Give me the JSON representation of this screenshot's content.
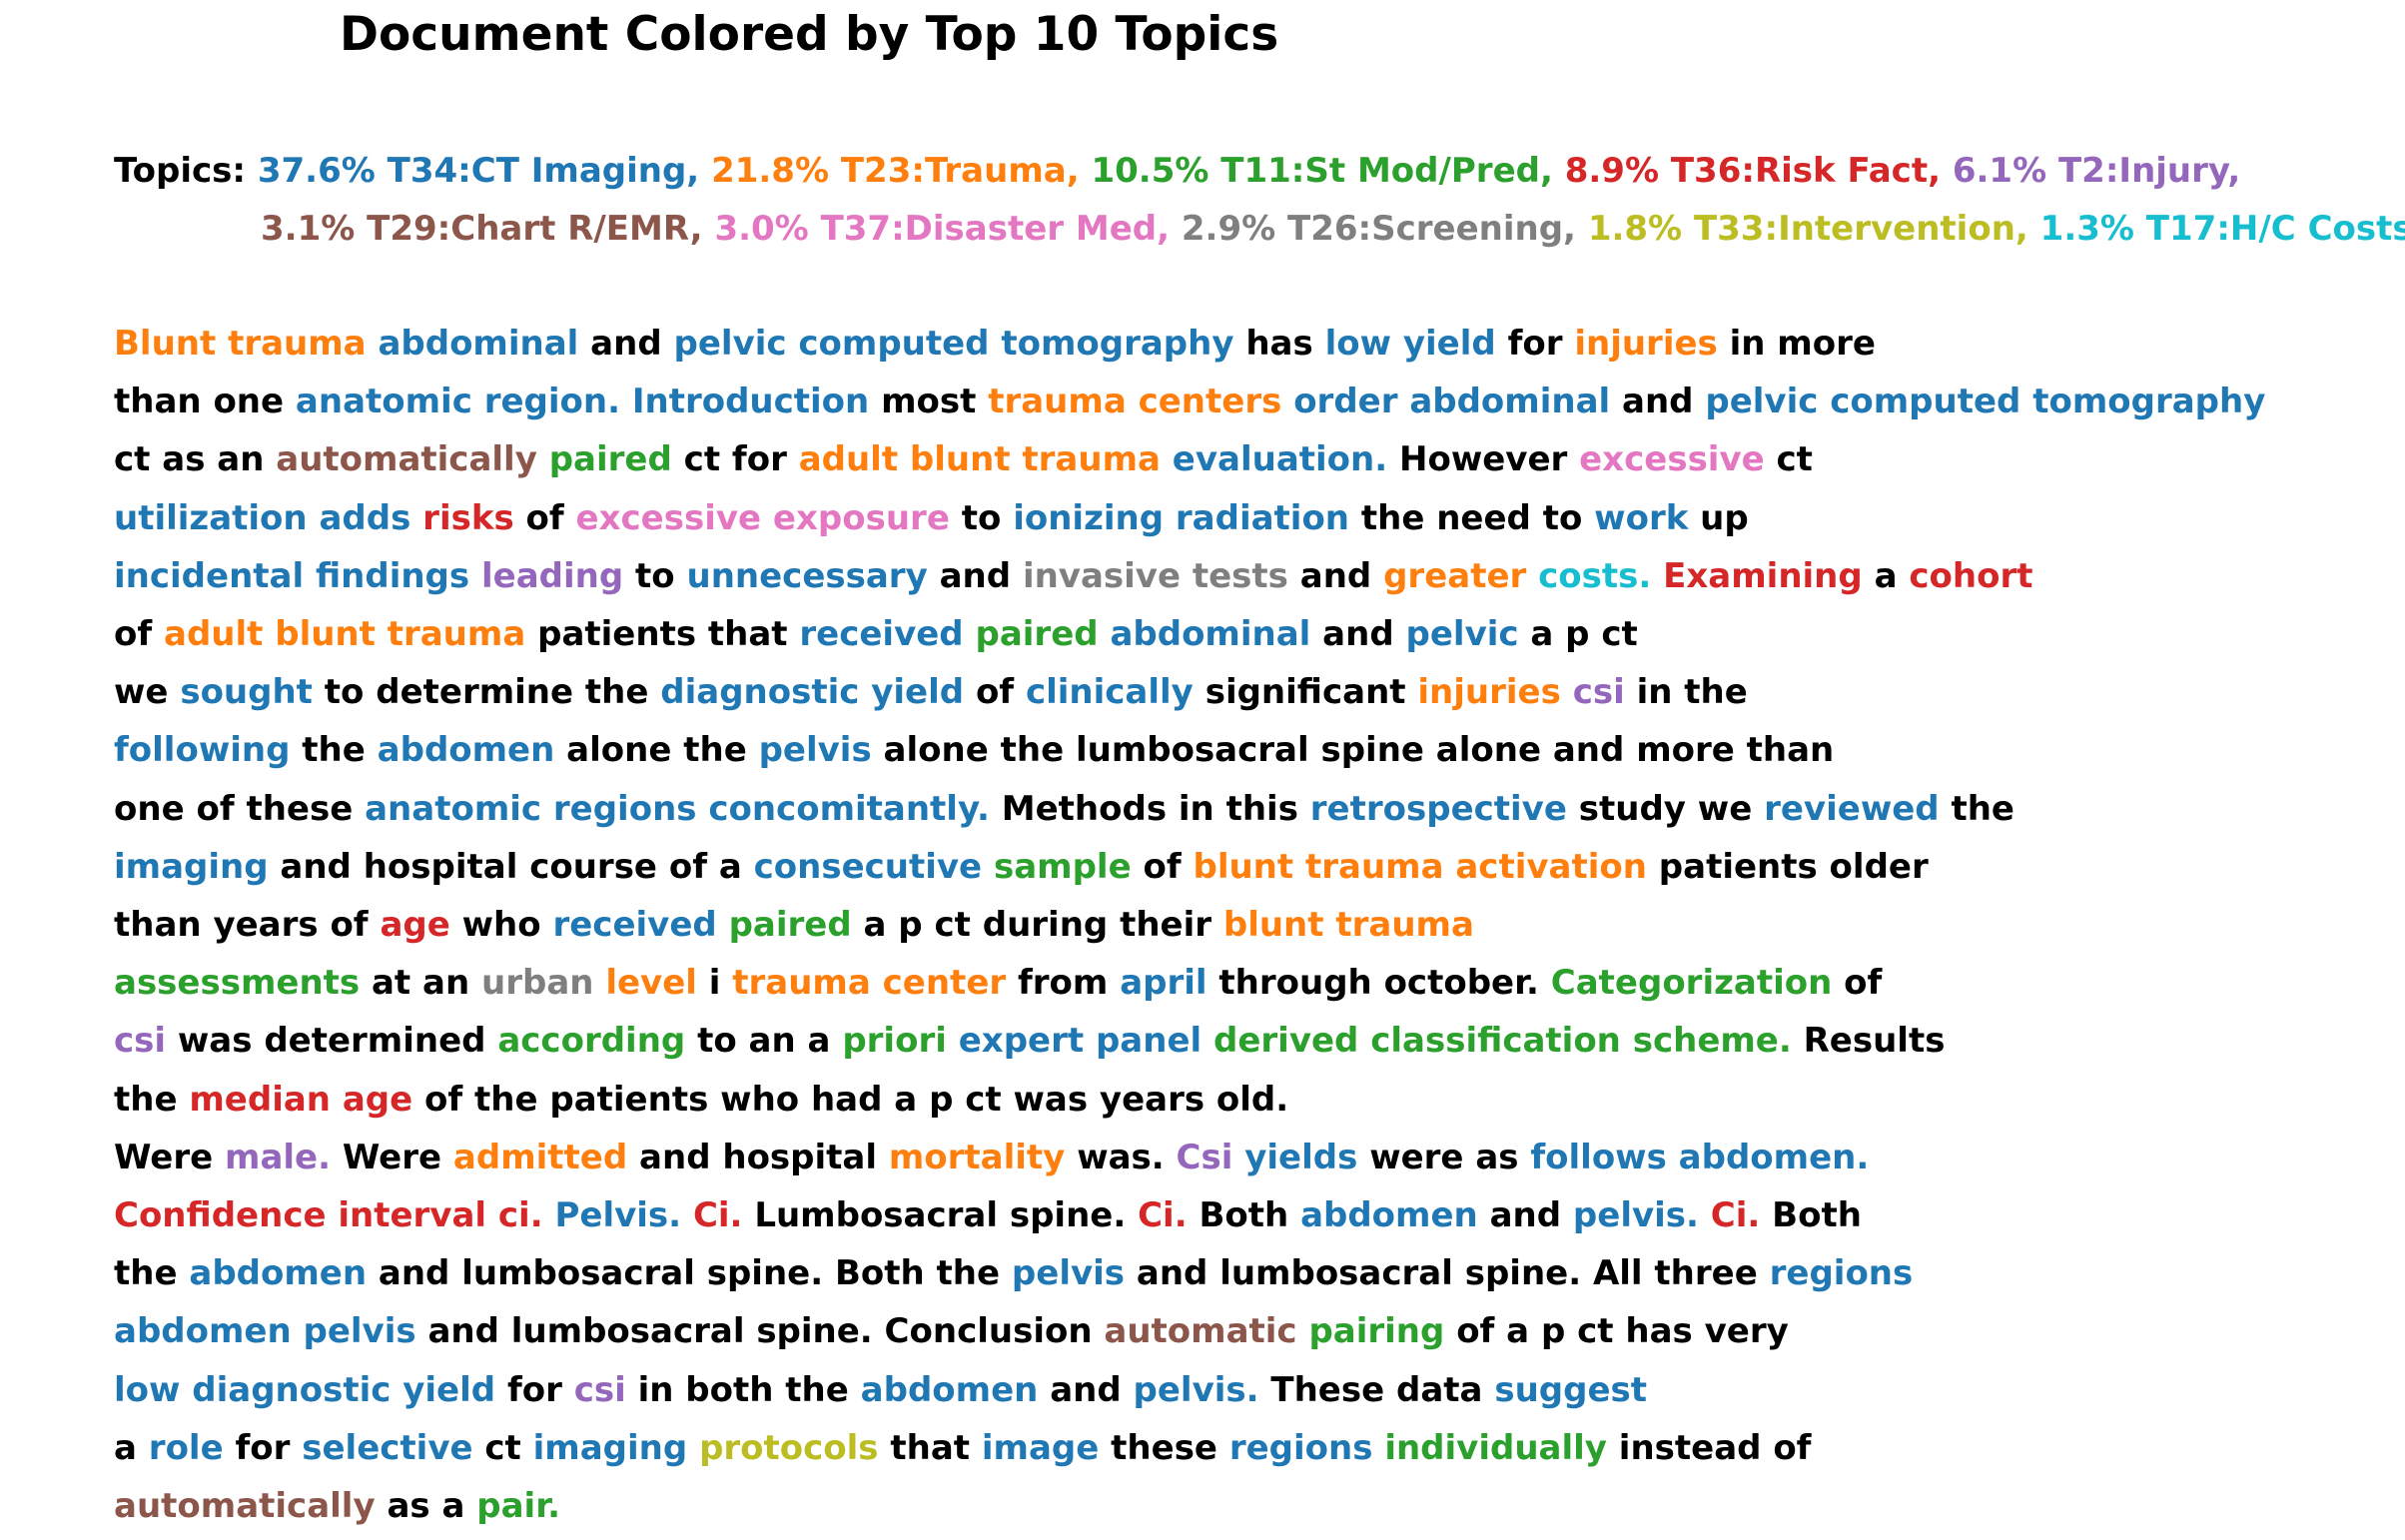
{
  "title": "Document Colored by Top 10 Topics",
  "colors": {
    "black": "#000000",
    "T34": "#1f77b4",
    "T23": "#ff7f0e",
    "T11": "#2ca02c",
    "T36": "#d62728",
    "T2": "#9467bd",
    "T29": "#8c564b",
    "T37": "#e377c2",
    "T26": "#7f7f7f",
    "T33": "#bcbd22",
    "T17": "#17becf"
  },
  "topics_label": "Topics:",
  "topics_lines": [
    [
      {
        "text": "37.6% T34:CT Imaging,",
        "color": "T34"
      },
      {
        "text": "21.8% T23:Trauma,",
        "color": "T23"
      },
      {
        "text": "10.5% T11:St Mod/Pred,",
        "color": "T11"
      },
      {
        "text": "8.9% T36:Risk Fact,",
        "color": "T36"
      },
      {
        "text": "6.1% T2:Injury,",
        "color": "T2"
      }
    ],
    [
      {
        "text": "3.1% T29:Chart R/EMR,",
        "color": "T29"
      },
      {
        "text": "3.0% T37:Disaster Med,",
        "color": "T37"
      },
      {
        "text": "2.9% T26:Screening,",
        "color": "T26"
      },
      {
        "text": "1.8% T33:Intervention,",
        "color": "T33"
      },
      {
        "text": "1.3% T17:H/C Costs,",
        "color": "T17"
      }
    ]
  ],
  "document_lines": [
    [
      [
        "Blunt trauma",
        "T23"
      ],
      [
        "abdominal",
        "T34"
      ],
      [
        "and",
        "black"
      ],
      [
        "pelvic computed tomography",
        "T34"
      ],
      [
        "has",
        "black"
      ],
      [
        "low yield",
        "T34"
      ],
      [
        "for",
        "black"
      ],
      [
        "injuries",
        "T23"
      ],
      [
        "in more",
        "black"
      ]
    ],
    [
      [
        "than one",
        "black"
      ],
      [
        "anatomic region. Introduction",
        "T34"
      ],
      [
        "most",
        "black"
      ],
      [
        "trauma centers",
        "T23"
      ],
      [
        "order abdominal",
        "T34"
      ],
      [
        "and",
        "black"
      ],
      [
        "pelvic computed tomography",
        "T34"
      ]
    ],
    [
      [
        "ct as an",
        "black"
      ],
      [
        "automatically",
        "T29"
      ],
      [
        "paired",
        "T11"
      ],
      [
        "ct for",
        "black"
      ],
      [
        "adult blunt trauma",
        "T23"
      ],
      [
        "evaluation.",
        "T34"
      ],
      [
        "However",
        "black"
      ],
      [
        "excessive",
        "T37"
      ],
      [
        "ct",
        "black"
      ]
    ],
    [
      [
        "utilization adds",
        "T34"
      ],
      [
        "risks",
        "T36"
      ],
      [
        "of",
        "black"
      ],
      [
        "excessive exposure",
        "T37"
      ],
      [
        "to",
        "black"
      ],
      [
        "ionizing radiation",
        "T34"
      ],
      [
        "the need to",
        "black"
      ],
      [
        "work",
        "T34"
      ],
      [
        "up",
        "black"
      ]
    ],
    [
      [
        "incidental findings",
        "T34"
      ],
      [
        "leading",
        "T2"
      ],
      [
        "to",
        "black"
      ],
      [
        "unnecessary",
        "T34"
      ],
      [
        "and",
        "black"
      ],
      [
        "invasive tests",
        "T26"
      ],
      [
        "and",
        "black"
      ],
      [
        "greater",
        "T23"
      ],
      [
        "costs.",
        "T17"
      ],
      [
        "Examining",
        "T36"
      ],
      [
        "a",
        "black"
      ],
      [
        "cohort",
        "T36"
      ]
    ],
    [
      [
        "of",
        "black"
      ],
      [
        "adult blunt trauma",
        "T23"
      ],
      [
        "patients that",
        "black"
      ],
      [
        "received",
        "T34"
      ],
      [
        "paired",
        "T11"
      ],
      [
        "abdominal",
        "T34"
      ],
      [
        "and",
        "black"
      ],
      [
        "pelvic",
        "T34"
      ],
      [
        "a p ct",
        "black"
      ]
    ],
    [
      [
        "we",
        "black"
      ],
      [
        "sought",
        "T34"
      ],
      [
        "to determine the",
        "black"
      ],
      [
        "diagnostic yield",
        "T34"
      ],
      [
        "of",
        "black"
      ],
      [
        "clinically",
        "T34"
      ],
      [
        "significant",
        "black"
      ],
      [
        "injuries",
        "T23"
      ],
      [
        "csi",
        "T2"
      ],
      [
        "in the",
        "black"
      ]
    ],
    [
      [
        "following",
        "T34"
      ],
      [
        "the",
        "black"
      ],
      [
        "abdomen",
        "T34"
      ],
      [
        "alone the",
        "black"
      ],
      [
        "pelvis",
        "T34"
      ],
      [
        "alone the lumbosacral spine alone and more than",
        "black"
      ]
    ],
    [
      [
        "one of these",
        "black"
      ],
      [
        "anatomic regions concomitantly.",
        "T34"
      ],
      [
        "Methods in this",
        "black"
      ],
      [
        "retrospective",
        "T34"
      ],
      [
        "study we",
        "black"
      ],
      [
        "reviewed",
        "T34"
      ],
      [
        "the",
        "black"
      ]
    ],
    [
      [
        "imaging",
        "T34"
      ],
      [
        "and hospital course of a",
        "black"
      ],
      [
        "consecutive",
        "T34"
      ],
      [
        "sample",
        "T11"
      ],
      [
        "of",
        "black"
      ],
      [
        "blunt trauma activation",
        "T23"
      ],
      [
        "patients older",
        "black"
      ]
    ],
    [
      [
        "than years of",
        "black"
      ],
      [
        "age",
        "T36"
      ],
      [
        "who",
        "black"
      ],
      [
        "received",
        "T34"
      ],
      [
        "paired",
        "T11"
      ],
      [
        "a p ct during their",
        "black"
      ],
      [
        "blunt trauma",
        "T23"
      ]
    ],
    [
      [
        "assessments",
        "T11"
      ],
      [
        "at an",
        "black"
      ],
      [
        "urban",
        "T26"
      ],
      [
        "level",
        "T23"
      ],
      [
        "i",
        "black"
      ],
      [
        "trauma center",
        "T23"
      ],
      [
        "from",
        "black"
      ],
      [
        "april",
        "T34"
      ],
      [
        "through october.",
        "black"
      ],
      [
        "Categorization",
        "T11"
      ],
      [
        "of",
        "black"
      ]
    ],
    [
      [
        "csi",
        "T2"
      ],
      [
        "was determined",
        "black"
      ],
      [
        "according",
        "T11"
      ],
      [
        "to an a",
        "black"
      ],
      [
        "priori",
        "T11"
      ],
      [
        "expert panel",
        "T34"
      ],
      [
        "derived classification scheme.",
        "T11"
      ],
      [
        "Results",
        "black"
      ]
    ],
    [
      [
        "the",
        "black"
      ],
      [
        "median age",
        "T36"
      ],
      [
        "of the patients who had a p ct was years old.",
        "black"
      ]
    ],
    [
      [
        "Were",
        "black"
      ],
      [
        "male.",
        "T2"
      ],
      [
        "Were",
        "black"
      ],
      [
        "admitted",
        "T23"
      ],
      [
        "and hospital",
        "black"
      ],
      [
        "mortality",
        "T23"
      ],
      [
        "was.",
        "black"
      ],
      [
        "Csi",
        "T2"
      ],
      [
        "yields",
        "T34"
      ],
      [
        "were as",
        "black"
      ],
      [
        "follows abdomen.",
        "T34"
      ]
    ],
    [
      [
        "Confidence interval ci.",
        "T36"
      ],
      [
        "Pelvis.",
        "T34"
      ],
      [
        "Ci.",
        "T36"
      ],
      [
        "Lumbosacral spine.",
        "black"
      ],
      [
        "Ci.",
        "T36"
      ],
      [
        "Both",
        "black"
      ],
      [
        "abdomen",
        "T34"
      ],
      [
        "and",
        "black"
      ],
      [
        "pelvis.",
        "T34"
      ],
      [
        "Ci.",
        "T36"
      ],
      [
        "Both",
        "black"
      ]
    ],
    [
      [
        "the",
        "black"
      ],
      [
        "abdomen",
        "T34"
      ],
      [
        "and lumbosacral spine. Both the",
        "black"
      ],
      [
        "pelvis",
        "T34"
      ],
      [
        "and lumbosacral spine. All three",
        "black"
      ],
      [
        "regions",
        "T34"
      ]
    ],
    [
      [
        "abdomen pelvis",
        "T34"
      ],
      [
        "and lumbosacral spine. Conclusion",
        "black"
      ],
      [
        "automatic",
        "T29"
      ],
      [
        "pairing",
        "T11"
      ],
      [
        "of a p ct has very",
        "black"
      ]
    ],
    [
      [
        "low diagnostic yield",
        "T34"
      ],
      [
        "for",
        "black"
      ],
      [
        "csi",
        "T2"
      ],
      [
        "in both the",
        "black"
      ],
      [
        "abdomen",
        "T34"
      ],
      [
        "and",
        "black"
      ],
      [
        "pelvis.",
        "T34"
      ],
      [
        "These data",
        "black"
      ],
      [
        "suggest",
        "T34"
      ]
    ],
    [
      [
        "a",
        "black"
      ],
      [
        "role",
        "T34"
      ],
      [
        "for",
        "black"
      ],
      [
        "selective",
        "T34"
      ],
      [
        "ct",
        "black"
      ],
      [
        "imaging",
        "T34"
      ],
      [
        "protocols",
        "T33"
      ],
      [
        "that",
        "black"
      ],
      [
        "image",
        "T34"
      ],
      [
        "these",
        "black"
      ],
      [
        "regions",
        "T34"
      ],
      [
        "individually",
        "T11"
      ],
      [
        "instead of",
        "black"
      ]
    ],
    [
      [
        "automatically",
        "T29"
      ],
      [
        "as a",
        "black"
      ],
      [
        "pair.",
        "T11"
      ]
    ]
  ]
}
